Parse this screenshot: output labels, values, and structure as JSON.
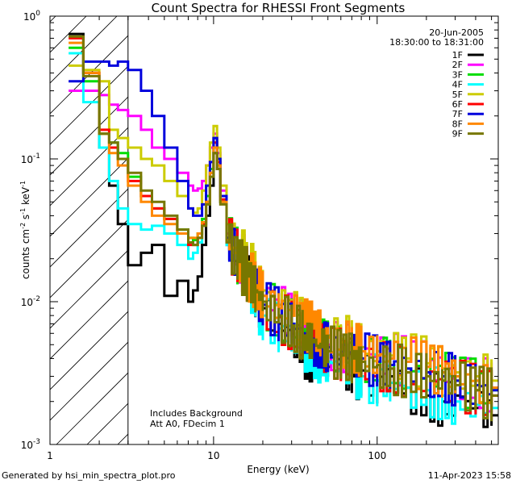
{
  "chart_data": {
    "type": "line",
    "title": "Count Spectra for RHESSI Front Segments",
    "xlabel": "Energy (keV)",
    "ylabel_parts": [
      "counts cm",
      "-2",
      " s",
      "-1",
      " keV",
      "-1"
    ],
    "xscale": "log",
    "yscale": "log",
    "xlim": [
      1,
      550
    ],
    "ylim": [
      0.001,
      1
    ],
    "x_ticks": [
      {
        "value": 1,
        "label": "1"
      },
      {
        "value": 10,
        "label": "10"
      },
      {
        "value": 100,
        "label": "100"
      }
    ],
    "y_ticks": [
      {
        "value": 1,
        "label": "10",
        "exp": "0"
      },
      {
        "value": 0.1,
        "label": "10",
        "exp": "-1"
      },
      {
        "value": 0.01,
        "label": "10",
        "exp": "-2"
      },
      {
        "value": 0.001,
        "label": "10",
        "exp": "-3"
      }
    ],
    "hatched_region": {
      "x_from": 1,
      "x_to": 3
    },
    "date": "20-Jun-2005",
    "time_range": "18:30:00 to 18:31:00",
    "notes": [
      "Includes Background",
      "Att A0, FDecim 1"
    ],
    "legend_position": "top-right",
    "series": [
      {
        "name": "1F",
        "color": "#000000",
        "energy": [
          1.3,
          1.6,
          2.0,
          2.3,
          2.6,
          3.0,
          3.6,
          4.2,
          5.0,
          6.0,
          7.0,
          7.5,
          8.0,
          8.5,
          9.0,
          9.5,
          10.0,
          10.5,
          11.0,
          12,
          14,
          16,
          18,
          20,
          25,
          30,
          35,
          40,
          45,
          50,
          60,
          70,
          80,
          100,
          120,
          150,
          200,
          250,
          300,
          400,
          500
        ],
        "counts": [
          0.75,
          0.4,
          0.12,
          0.065,
          0.035,
          0.018,
          0.022,
          0.025,
          0.011,
          0.014,
          0.01,
          0.012,
          0.015,
          0.025,
          0.04,
          0.065,
          0.11,
          0.085,
          0.05,
          0.025,
          0.02,
          0.015,
          0.011,
          0.009,
          0.007,
          0.006,
          0.0045,
          0.004,
          0.0045,
          0.0035,
          0.0038,
          0.003,
          0.0033,
          0.0028,
          0.003,
          0.0025,
          0.0022,
          0.002,
          0.0022,
          0.0018,
          0.0016
        ]
      },
      {
        "name": "2F",
        "color": "#ff00ff",
        "energy": [
          1.3,
          1.6,
          2.0,
          2.3,
          2.6,
          3.0,
          3.6,
          4.2,
          5.0,
          6.0,
          7.0,
          7.5,
          8.0,
          8.5,
          9.0,
          9.5,
          10.0,
          10.5,
          11.0,
          12,
          14,
          16,
          18,
          20,
          25,
          30,
          35,
          40,
          45,
          50,
          60,
          70,
          80,
          100,
          120,
          150,
          200,
          250,
          300,
          400,
          500
        ],
        "counts": [
          0.3,
          0.3,
          0.28,
          0.24,
          0.22,
          0.2,
          0.16,
          0.12,
          0.1,
          0.08,
          0.065,
          0.06,
          0.062,
          0.07,
          0.09,
          0.12,
          0.15,
          0.11,
          0.06,
          0.03,
          0.022,
          0.017,
          0.013,
          0.011,
          0.009,
          0.008,
          0.0065,
          0.006,
          0.0055,
          0.005,
          0.0048,
          0.0045,
          0.0045,
          0.0042,
          0.004,
          0.0038,
          0.0035,
          0.0032,
          0.003,
          0.0028,
          0.0025
        ]
      },
      {
        "name": "3F",
        "color": "#00dd00",
        "energy": [
          1.3,
          1.6,
          2.0,
          2.3,
          2.6,
          3.0,
          3.6,
          4.2,
          5.0,
          6.0,
          7.0,
          7.5,
          8.0,
          8.5,
          9.0,
          9.5,
          10.0,
          10.5,
          11.0,
          12,
          14,
          16,
          18,
          20,
          25,
          30,
          35,
          40,
          45,
          50,
          60,
          70,
          80,
          100,
          120,
          150,
          200,
          250,
          300,
          400,
          500
        ],
        "counts": [
          0.6,
          0.35,
          0.15,
          0.13,
          0.11,
          0.075,
          0.055,
          0.045,
          0.038,
          0.032,
          0.028,
          0.027,
          0.03,
          0.038,
          0.055,
          0.085,
          0.14,
          0.1,
          0.055,
          0.028,
          0.02,
          0.016,
          0.012,
          0.01,
          0.008,
          0.007,
          0.006,
          0.0055,
          0.005,
          0.0048,
          0.0045,
          0.0042,
          0.004,
          0.0038,
          0.0036,
          0.0034,
          0.0032,
          0.003,
          0.0028,
          0.0026,
          0.0024
        ]
      },
      {
        "name": "4F",
        "color": "#00ffff",
        "energy": [
          1.3,
          1.6,
          2.0,
          2.3,
          2.6,
          3.0,
          3.6,
          4.2,
          5.0,
          6.0,
          7.0,
          7.5,
          8.0,
          8.5,
          9.0,
          9.5,
          10.0,
          10.5,
          11.0,
          12,
          14,
          16,
          18,
          20,
          25,
          30,
          35,
          40,
          45,
          50,
          60,
          70,
          80,
          100,
          120,
          150,
          200,
          250,
          300,
          400,
          500
        ],
        "counts": [
          0.55,
          0.25,
          0.12,
          0.07,
          0.045,
          0.035,
          0.032,
          0.034,
          0.03,
          0.025,
          0.02,
          0.022,
          0.026,
          0.035,
          0.05,
          0.08,
          0.12,
          0.09,
          0.05,
          0.025,
          0.018,
          0.013,
          0.01,
          0.008,
          0.0065,
          0.0055,
          0.0048,
          0.0045,
          0.004,
          0.0038,
          0.0035,
          0.0032,
          0.003,
          0.0028,
          0.0027,
          0.0025,
          0.0024,
          0.0022,
          0.002,
          0.0019,
          0.0018
        ]
      },
      {
        "name": "5F",
        "color": "#cccc00",
        "energy": [
          1.3,
          1.6,
          2.0,
          2.3,
          2.6,
          3.0,
          3.6,
          4.2,
          5.0,
          6.0,
          7.0,
          7.5,
          8.0,
          8.5,
          9.0,
          9.5,
          10.0,
          10.5,
          11.0,
          12,
          14,
          16,
          18,
          20,
          25,
          30,
          35,
          40,
          45,
          50,
          60,
          70,
          80,
          100,
          120,
          150,
          200,
          250,
          300,
          400,
          500
        ],
        "counts": [
          0.45,
          0.42,
          0.35,
          0.16,
          0.14,
          0.12,
          0.1,
          0.09,
          0.07,
          0.055,
          0.045,
          0.042,
          0.045,
          0.06,
          0.09,
          0.13,
          0.17,
          0.12,
          0.065,
          0.035,
          0.025,
          0.019,
          0.015,
          0.012,
          0.0095,
          0.008,
          0.007,
          0.0065,
          0.006,
          0.0058,
          0.0055,
          0.005,
          0.0048,
          0.0045,
          0.0042,
          0.004,
          0.0037,
          0.0034,
          0.0032,
          0.003,
          0.0028
        ]
      },
      {
        "name": "6F",
        "color": "#ff0000",
        "energy": [
          1.3,
          1.6,
          2.0,
          2.3,
          2.6,
          3.0,
          3.6,
          4.2,
          5.0,
          6.0,
          7.0,
          7.5,
          8.0,
          8.5,
          9.0,
          9.5,
          10.0,
          10.5,
          11.0,
          12,
          14,
          16,
          18,
          20,
          25,
          30,
          35,
          40,
          45,
          50,
          60,
          70,
          80,
          100,
          120,
          150,
          200,
          250,
          300,
          400,
          500
        ],
        "counts": [
          0.7,
          0.4,
          0.16,
          0.12,
          0.1,
          0.07,
          0.055,
          0.045,
          0.038,
          0.03,
          0.025,
          0.025,
          0.028,
          0.035,
          0.05,
          0.08,
          0.13,
          0.095,
          0.052,
          0.027,
          0.02,
          0.015,
          0.012,
          0.0095,
          0.0078,
          0.0068,
          0.0058,
          0.0052,
          0.0048,
          0.0045,
          0.0042,
          0.004,
          0.0038,
          0.0036,
          0.0034,
          0.0032,
          0.003,
          0.0028,
          0.0026,
          0.0024,
          0.0022
        ]
      },
      {
        "name": "7F",
        "color": "#0000dd",
        "energy": [
          1.3,
          1.6,
          2.0,
          2.3,
          2.6,
          3.0,
          3.6,
          4.2,
          5.0,
          6.0,
          7.0,
          7.5,
          8.0,
          8.5,
          9.0,
          9.5,
          10.0,
          10.5,
          11.0,
          12,
          14,
          16,
          18,
          20,
          25,
          30,
          35,
          40,
          45,
          50,
          60,
          70,
          80,
          100,
          120,
          150,
          200,
          250,
          300,
          400,
          500
        ],
        "counts": [
          0.35,
          0.48,
          0.48,
          0.45,
          0.48,
          0.42,
          0.3,
          0.2,
          0.12,
          0.07,
          0.045,
          0.04,
          0.04,
          0.048,
          0.065,
          0.095,
          0.14,
          0.1,
          0.055,
          0.028,
          0.02,
          0.015,
          0.012,
          0.0095,
          0.008,
          0.007,
          0.006,
          0.0055,
          0.005,
          0.0048,
          0.0045,
          0.0042,
          0.004,
          0.0038,
          0.0036,
          0.0034,
          0.0032,
          0.003,
          0.0028,
          0.0026,
          0.0024
        ]
      },
      {
        "name": "8F",
        "color": "#ff8800",
        "energy": [
          1.3,
          1.6,
          2.0,
          2.3,
          2.6,
          3.0,
          3.6,
          4.2,
          5.0,
          6.0,
          7.0,
          7.5,
          8.0,
          8.5,
          9.0,
          9.5,
          10.0,
          10.5,
          11.0,
          12,
          14,
          16,
          18,
          20,
          25,
          30,
          35,
          40,
          45,
          50,
          60,
          70,
          80,
          100,
          120,
          150,
          200,
          250,
          300,
          400,
          500
        ],
        "counts": [
          0.65,
          0.4,
          0.15,
          0.11,
          0.09,
          0.065,
          0.05,
          0.04,
          0.035,
          0.03,
          0.028,
          0.028,
          0.03,
          0.036,
          0.05,
          0.08,
          0.12,
          0.09,
          0.05,
          0.027,
          0.02,
          0.016,
          0.013,
          0.011,
          0.009,
          0.008,
          0.007,
          0.0065,
          0.006,
          0.0056,
          0.0052,
          0.0048,
          0.0045,
          0.0042,
          0.004,
          0.0038,
          0.0035,
          0.0032,
          0.003,
          0.0028,
          0.0025
        ]
      },
      {
        "name": "9F",
        "color": "#777700",
        "energy": [
          1.3,
          1.6,
          2.0,
          2.3,
          2.6,
          3.0,
          3.6,
          4.2,
          5.0,
          6.0,
          7.0,
          7.5,
          8.0,
          8.5,
          9.0,
          9.5,
          10.0,
          10.5,
          11.0,
          12,
          14,
          16,
          18,
          20,
          25,
          30,
          35,
          40,
          45,
          50,
          60,
          70,
          80,
          100,
          120,
          150,
          200,
          250,
          300,
          400,
          500
        ],
        "counts": [
          0.72,
          0.38,
          0.15,
          0.13,
          0.1,
          0.08,
          0.06,
          0.05,
          0.04,
          0.032,
          0.026,
          0.025,
          0.028,
          0.034,
          0.048,
          0.075,
          0.11,
          0.085,
          0.048,
          0.026,
          0.019,
          0.015,
          0.012,
          0.01,
          0.008,
          0.0068,
          0.0058,
          0.0052,
          0.0048,
          0.0045,
          0.0042,
          0.004,
          0.0038,
          0.0036,
          0.0034,
          0.0032,
          0.003,
          0.0028,
          0.0026,
          0.0024,
          0.0022
        ]
      }
    ]
  },
  "footer": {
    "generated_by": "Generated by hsi_min_spectra_plot.pro",
    "timestamp": "11-Apr-2023 15:58"
  }
}
